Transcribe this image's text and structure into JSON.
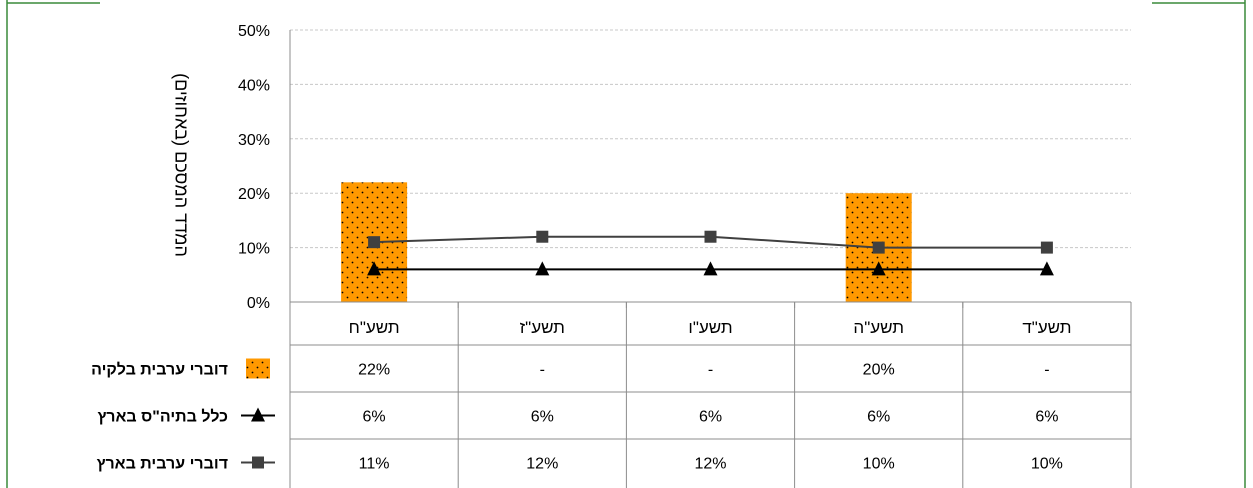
{
  "chart_data": {
    "type": "bar",
    "categories": [
      "תשע\"ד",
      "תשע\"ה",
      "תשע\"ו",
      "תשע\"ז",
      "תשע\"ח"
    ],
    "ylabel": "המדד המסכם (באחוזים)",
    "ylim": [
      0,
      50
    ],
    "yticks": [
      "0%",
      "10%",
      "20%",
      "30%",
      "40%",
      "50%"
    ],
    "grid": true,
    "series": [
      {
        "name": "דוברי ערבית בלקיה",
        "kind": "bar",
        "values": [
          null,
          20,
          null,
          null,
          22
        ],
        "table_values": [
          "-",
          "20%",
          "-",
          "-",
          "22%"
        ],
        "color": "#FF9900"
      },
      {
        "name": "כלל בתיה\"ס בארץ",
        "kind": "line",
        "marker": "triangle",
        "values": [
          6,
          6,
          6,
          6,
          6
        ],
        "table_values": [
          "6%",
          "6%",
          "6%",
          "6%",
          "6%"
        ],
        "color": "#000000"
      },
      {
        "name": "דוברי ערבית בארץ",
        "kind": "line",
        "marker": "square",
        "values": [
          10,
          10,
          12,
          12,
          11
        ],
        "table_values": [
          "10%",
          "10%",
          "12%",
          "12%",
          "11%"
        ],
        "color": "#404040"
      }
    ]
  }
}
